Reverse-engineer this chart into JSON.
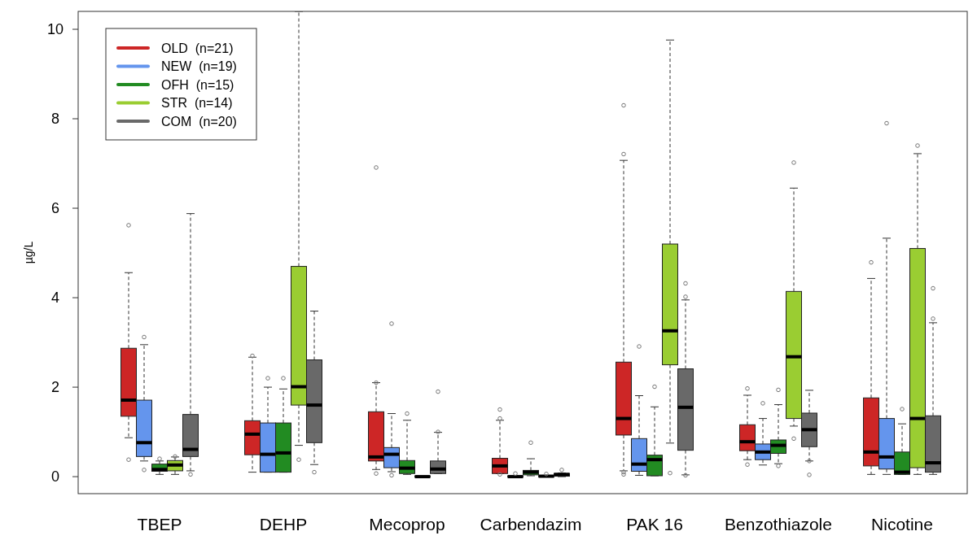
{
  "chart_data": {
    "type": "box",
    "ylabel": "µg/L",
    "categories": [
      "TBEP",
      "DEHP",
      "Mecoprop",
      "Carbendazim",
      "PAK 16",
      "Benzothiazole",
      "Nicotine"
    ],
    "ylim": [
      -0.38,
      10.4
    ],
    "yticks": [
      0,
      2,
      4,
      6,
      8,
      10
    ],
    "grid": false,
    "legend": "top left",
    "series": [
      {
        "name": "OLD  (n=21)",
        "color": "#cd2626",
        "boxes": [
          {
            "low": 0.87,
            "q1": 1.35,
            "median": 1.71,
            "q3": 2.87,
            "high": 4.56,
            "outliers": [
              5.62,
              0.38
            ]
          },
          {
            "low": 0.1,
            "q1": 0.49,
            "median": 0.95,
            "q3": 1.25,
            "high": 2.67,
            "outliers": [
              2.7
            ]
          },
          {
            "low": 0.16,
            "q1": 0.35,
            "median": 0.44,
            "q3": 1.45,
            "high": 2.1,
            "outliers": [
              6.91,
              2.1,
              0.07
            ]
          },
          {
            "low": 0.07,
            "q1": 0.07,
            "median": 0.24,
            "q3": 0.41,
            "high": 1.26,
            "outliers": [
              1.5,
              1.3,
              0.05
            ]
          },
          {
            "low": 0.13,
            "q1": 0.93,
            "median": 1.3,
            "q3": 2.56,
            "high": 7.07,
            "outliers": [
              8.3,
              7.21,
              0.1,
              0.05
            ]
          },
          {
            "low": 0.38,
            "q1": 0.58,
            "median": 0.78,
            "q3": 1.16,
            "high": 1.82,
            "outliers": [
              1.97,
              0.27
            ]
          },
          {
            "low": 0.05,
            "q1": 0.24,
            "median": 0.55,
            "q3": 1.76,
            "high": 4.43,
            "outliers": [
              4.79
            ]
          }
        ]
      },
      {
        "name": "NEW  (n=19)",
        "color": "#6495ed",
        "boxes": [
          {
            "low": 0.35,
            "q1": 0.45,
            "median": 0.76,
            "q3": 1.71,
            "high": 2.95,
            "outliers": [
              3.12,
              0.15
            ]
          },
          {
            "low": 0.1,
            "q1": 0.1,
            "median": 0.5,
            "q3": 1.2,
            "high": 2.0,
            "outliers": [
              2.2
            ]
          },
          {
            "low": 0.11,
            "q1": 0.2,
            "median": 0.5,
            "q3": 0.65,
            "high": 1.41,
            "outliers": [
              3.42,
              0.03
            ]
          },
          {
            "low": 0,
            "q1": 0,
            "median": 0,
            "q3": 0.01,
            "high": 0.01,
            "outliers": [
              0.07
            ]
          },
          {
            "low": 0.03,
            "q1": 0.12,
            "median": 0.28,
            "q3": 0.85,
            "high": 1.81,
            "outliers": [
              2.91
            ]
          },
          {
            "low": 0.26,
            "q1": 0.38,
            "median": 0.55,
            "q3": 0.73,
            "high": 1.3,
            "outliers": [
              1.64
            ]
          },
          {
            "low": 0.05,
            "q1": 0.17,
            "median": 0.44,
            "q3": 1.3,
            "high": 5.33,
            "outliers": [
              7.9
            ]
          }
        ]
      },
      {
        "name": "OFH  (n=15)",
        "color": "#228b22",
        "boxes": [
          {
            "low": 0.05,
            "q1": 0.12,
            "median": 0.16,
            "q3": 0.28,
            "high": 0.35,
            "outliers": [
              0.4
            ]
          },
          {
            "low": 0.1,
            "q1": 0.1,
            "median": 0.53,
            "q3": 1.2,
            "high": 1.96,
            "outliers": [
              2.2
            ]
          },
          {
            "low": 0.05,
            "q1": 0.07,
            "median": 0.19,
            "q3": 0.36,
            "high": 1.26,
            "outliers": [
              1.41
            ]
          },
          {
            "low": 0.02,
            "q1": 0.04,
            "median": 0.1,
            "q3": 0.14,
            "high": 0.4,
            "outliers": [
              0.76
            ]
          },
          {
            "low": 0.02,
            "q1": 0.02,
            "median": 0.38,
            "q3": 0.48,
            "high": 1.56,
            "outliers": [
              2.01
            ]
          },
          {
            "low": 0.29,
            "q1": 0.52,
            "median": 0.7,
            "q3": 0.82,
            "high": 1.61,
            "outliers": [
              1.94,
              0.24
            ]
          },
          {
            "low": 0.05,
            "q1": 0.05,
            "median": 0.1,
            "q3": 0.55,
            "high": 1.18,
            "outliers": [
              1.51
            ]
          }
        ]
      },
      {
        "name": "STR  (n=14)",
        "color": "#9acd32",
        "boxes": [
          {
            "low": 0.05,
            "q1": 0.13,
            "median": 0.26,
            "q3": 0.36,
            "high": 0.44,
            "outliers": [
              0.45
            ]
          },
          {
            "low": 0.7,
            "q1": 1.6,
            "median": 2.01,
            "q3": 4.7,
            "high": 10.4,
            "outliers": [
              0.38
            ]
          },
          {
            "low": 0,
            "q1": 0,
            "median": 0,
            "q3": 0.01,
            "high": 0.01
          },
          {
            "low": 0,
            "q1": 0,
            "median": 0.01,
            "q3": 0.02,
            "high": 0.03,
            "outliers": [
              0.06
            ]
          },
          {
            "low": 0.75,
            "q1": 2.5,
            "median": 3.26,
            "q3": 5.2,
            "high": 9.76,
            "outliers": [
              0.08
            ]
          },
          {
            "low": 1.13,
            "q1": 1.3,
            "median": 2.68,
            "q3": 4.14,
            "high": 6.45,
            "outliers": [
              7.02,
              0.85
            ]
          },
          {
            "low": 0.05,
            "q1": 0.2,
            "median": 1.3,
            "q3": 5.1,
            "high": 7.22,
            "outliers": [
              7.4
            ]
          }
        ]
      },
      {
        "name": "COM  (n=20)",
        "color": "#696969",
        "boxes": [
          {
            "low": 0.13,
            "q1": 0.45,
            "median": 0.61,
            "q3": 1.39,
            "high": 5.88,
            "outliers": [
              0.05
            ]
          },
          {
            "low": 0.27,
            "q1": 0.76,
            "median": 1.6,
            "q3": 2.61,
            "high": 3.7,
            "outliers": [
              0.1
            ]
          },
          {
            "low": 0.07,
            "q1": 0.07,
            "median": 0.17,
            "q3": 0.35,
            "high": 0.99,
            "outliers": [
              1.9,
              1.0
            ]
          },
          {
            "low": 0,
            "q1": 0.01,
            "median": 0.05,
            "q3": 0.07,
            "high": 0.08,
            "outliers": [
              0.15
            ]
          },
          {
            "low": 0.04,
            "q1": 0.59,
            "median": 1.55,
            "q3": 2.41,
            "high": 3.95,
            "outliers": [
              4.32,
              4.02,
              0.03
            ]
          },
          {
            "low": 0.35,
            "q1": 0.67,
            "median": 1.05,
            "q3": 1.42,
            "high": 1.93,
            "outliers": [
              0.35,
              0.04
            ]
          },
          {
            "low": 0.05,
            "q1": 0.1,
            "median": 0.31,
            "q3": 1.36,
            "high": 3.44,
            "outliers": [
              4.21,
              3.53
            ]
          }
        ]
      }
    ]
  }
}
